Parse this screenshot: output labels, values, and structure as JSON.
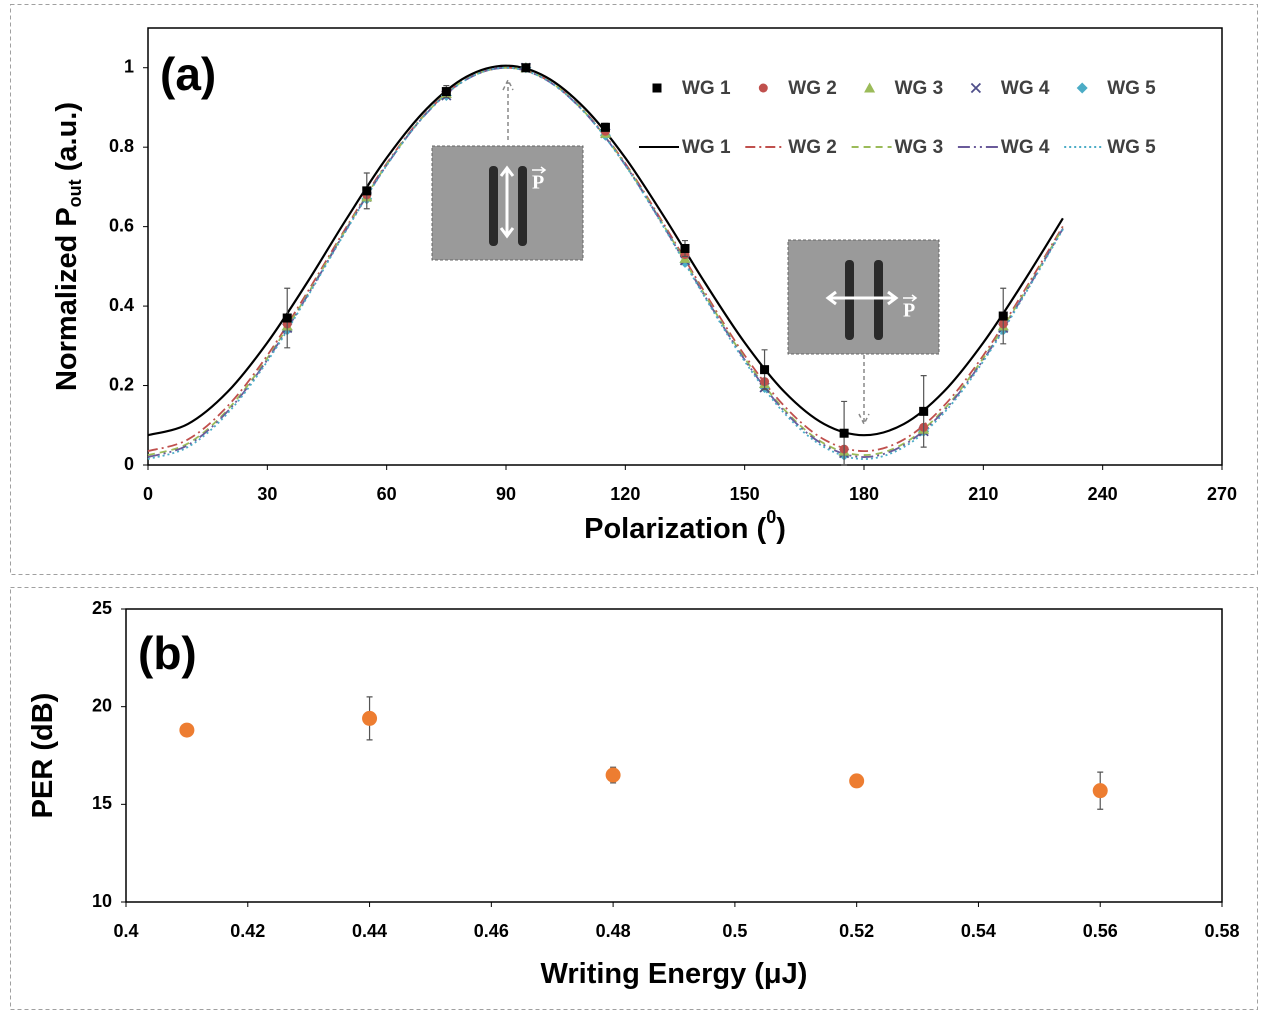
{
  "chart_data": [
    {
      "type": "scatter",
      "panel_label": "(a)",
      "y_label_parts": [
        "Normalized P",
        "out",
        " (a.u.)"
      ],
      "x_label_parts": [
        "Polarization (",
        "0",
        ")"
      ],
      "inset_labels": [
        "P",
        "P"
      ],
      "xlim": [
        0,
        270
      ],
      "xticks": [
        0,
        30,
        60,
        90,
        120,
        150,
        180,
        210,
        240,
        270
      ],
      "ylim": [
        0,
        1.1
      ],
      "yticks": [
        0,
        0.2,
        0.4,
        0.6,
        0.8,
        1
      ],
      "x": [
        35,
        55,
        75,
        95,
        115,
        135,
        155,
        175,
        195,
        215
      ],
      "series": [
        {
          "name": "WG 1",
          "color": "#000000",
          "marker": "square",
          "values": [
            0.37,
            0.69,
            0.94,
            1.0,
            0.85,
            0.545,
            0.24,
            0.08,
            0.135,
            0.375
          ],
          "errors": [
            0.075,
            0.045,
            0.015,
            0.005,
            0.01,
            0.02,
            0.05,
            0.08,
            0.09,
            0.07
          ]
        },
        {
          "name": "WG 2",
          "color": "#c0504d",
          "marker": "circle",
          "values": [
            0.355,
            0.68,
            0.94,
            1.0,
            0.84,
            0.53,
            0.21,
            0.04,
            0.095,
            0.355
          ]
        },
        {
          "name": "WG 3",
          "color": "#9bbb59",
          "marker": "triangle",
          "values": [
            0.35,
            0.675,
            0.935,
            1.0,
            0.835,
            0.52,
            0.205,
            0.035,
            0.09,
            0.35
          ]
        },
        {
          "name": "WG 4",
          "color": "#4f4f8a",
          "marker": "x",
          "values": [
            0.345,
            0.675,
            0.93,
            1.0,
            0.835,
            0.515,
            0.195,
            0.03,
            0.085,
            0.345
          ]
        },
        {
          "name": "WG 5",
          "color": "#4bacc6",
          "marker": "diamond",
          "values": [
            0.34,
            0.67,
            0.93,
            1.0,
            0.83,
            0.51,
            0.195,
            0.025,
            0.085,
            0.34
          ]
        }
      ],
      "fit_lines": [
        {
          "name": "WG 1",
          "color": "#000000",
          "dash": "none",
          "x": [
            0,
            10,
            20,
            30,
            40,
            50,
            60,
            70,
            80,
            90,
            100,
            110,
            120,
            130,
            140,
            150,
            160,
            170,
            180,
            190,
            200,
            210,
            220,
            230
          ],
          "values": [
            0.075,
            0.103,
            0.184,
            0.308,
            0.459,
            0.621,
            0.773,
            0.896,
            0.977,
            1.005,
            0.977,
            0.896,
            0.773,
            0.621,
            0.459,
            0.308,
            0.184,
            0.103,
            0.075,
            0.103,
            0.184,
            0.308,
            0.459,
            0.621
          ]
        },
        {
          "name": "WG 2",
          "color": "#c0504d",
          "dash": "10 4 2 4",
          "x": [
            0,
            10,
            20,
            30,
            40,
            50,
            60,
            70,
            80,
            90,
            100,
            110,
            120,
            130,
            140,
            150,
            160,
            170,
            180,
            190,
            200,
            210,
            220,
            230
          ],
          "values": [
            0.035,
            0.064,
            0.148,
            0.276,
            0.434,
            0.601,
            0.759,
            0.887,
            0.971,
            1.0,
            0.971,
            0.887,
            0.759,
            0.601,
            0.434,
            0.276,
            0.148,
            0.064,
            0.035,
            0.064,
            0.148,
            0.276,
            0.434,
            0.601
          ]
        },
        {
          "name": "WG 3",
          "color": "#9bbb59",
          "dash": "7 5",
          "x": [
            0,
            10,
            20,
            30,
            40,
            50,
            60,
            70,
            80,
            90,
            100,
            110,
            120,
            130,
            140,
            150,
            160,
            170,
            180,
            190,
            200,
            210,
            220,
            230
          ],
          "values": [
            0.025,
            0.054,
            0.139,
            0.269,
            0.428,
            0.597,
            0.756,
            0.886,
            0.971,
            1.0,
            0.971,
            0.886,
            0.756,
            0.597,
            0.428,
            0.269,
            0.139,
            0.054,
            0.025,
            0.054,
            0.139,
            0.269,
            0.428,
            0.597
          ]
        },
        {
          "name": "WG 4",
          "color": "#6a5a9a",
          "dash": "12 4 2 4 2 4",
          "x": [
            0,
            10,
            20,
            30,
            40,
            50,
            60,
            70,
            80,
            90,
            100,
            110,
            120,
            130,
            140,
            150,
            160,
            170,
            180,
            190,
            200,
            210,
            220,
            230
          ],
          "values": [
            0.02,
            0.05,
            0.135,
            0.265,
            0.425,
            0.595,
            0.755,
            0.885,
            0.97,
            1.0,
            0.97,
            0.885,
            0.755,
            0.595,
            0.425,
            0.265,
            0.135,
            0.05,
            0.02,
            0.05,
            0.135,
            0.265,
            0.425,
            0.595
          ]
        },
        {
          "name": "WG 5",
          "color": "#4bacc6",
          "dash": "2 3",
          "x": [
            0,
            10,
            20,
            30,
            40,
            50,
            60,
            70,
            80,
            90,
            100,
            110,
            120,
            130,
            140,
            150,
            160,
            170,
            180,
            190,
            200,
            210,
            220,
            230
          ],
          "values": [
            0.015,
            0.045,
            0.13,
            0.261,
            0.422,
            0.593,
            0.754,
            0.885,
            0.97,
            1.0,
            0.97,
            0.885,
            0.754,
            0.593,
            0.422,
            0.261,
            0.13,
            0.045,
            0.015,
            0.045,
            0.13,
            0.261,
            0.422,
            0.593
          ]
        }
      ]
    },
    {
      "type": "scatter",
      "panel_label": "(b)",
      "y_label_parts": [
        "PER (dB)"
      ],
      "x_label_parts": [
        "Writing Energy (μJ)"
      ],
      "xlim": [
        0.4,
        0.58
      ],
      "xticks": [
        0.4,
        0.42,
        0.44,
        0.46,
        0.48,
        0.5,
        0.52,
        0.54,
        0.56,
        0.58
      ],
      "ylim": [
        10,
        25
      ],
      "yticks": [
        10,
        15,
        20,
        25
      ],
      "x": [
        0.41,
        0.44,
        0.48,
        0.52,
        0.56
      ],
      "series": [
        {
          "color": "#ed7d31",
          "marker": "circle-big",
          "values": [
            18.8,
            19.4,
            16.5,
            16.2,
            15.7
          ],
          "errors": [
            null,
            1.1,
            0.4,
            null,
            0.95
          ]
        }
      ]
    }
  ]
}
